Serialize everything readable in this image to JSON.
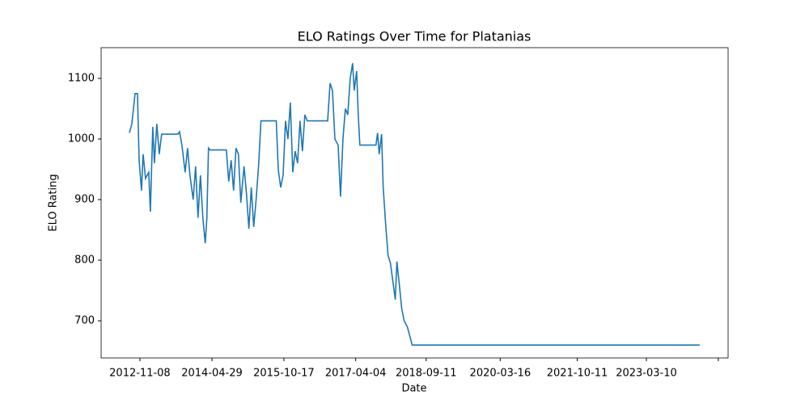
{
  "chart_data": {
    "type": "line",
    "title": "ELO Ratings Over Time for Platanias",
    "x_label": "Date",
    "y_label": "ELO Rating",
    "xlim": [
      "2012-01-24",
      "2024-11-08"
    ],
    "xticks": [
      "2012-11-08",
      "2014-04-29",
      "2015-10-17",
      "2017-04-04",
      "2018-09-11",
      "2020-03-16",
      "2021-10-11",
      "2023-03-10",
      {
        "value": "2024-08-27",
        "label": null
      }
    ],
    "ylim": [
      638.7,
      1150.7
    ],
    "yticks": [
      700,
      800,
      900,
      1000,
      1100
    ],
    "grid": false,
    "x": [
      "2012-08-22",
      "2012-09-09",
      "2012-10-03",
      "2012-10-21",
      "2012-10-27",
      "2012-11-02",
      "2012-11-20",
      "2012-12-02",
      "2012-12-20",
      "2013-01-13",
      "2013-01-25",
      "2013-02-12",
      "2013-02-24",
      "2013-03-14",
      "2013-04-01",
      "2013-04-19",
      "2013-08-18",
      "2013-08-30",
      "2013-09-17",
      "2013-10-11",
      "2013-10-29",
      "2013-11-16",
      "2013-12-10",
      "2013-12-28",
      "2014-01-15",
      "2014-02-02",
      "2014-02-20",
      "2014-03-10",
      "2014-03-22",
      "2014-04-03",
      "2014-04-15",
      "2014-08-14",
      "2014-09-01",
      "2014-09-19",
      "2014-10-07",
      "2014-10-25",
      "2014-11-12",
      "2014-11-30",
      "2014-12-24",
      "2015-01-11",
      "2015-01-29",
      "2015-02-16",
      "2015-03-06",
      "2015-03-24",
      "2015-04-11",
      "2015-04-29",
      "2015-08-21",
      "2015-09-05",
      "2015-09-23",
      "2015-10-11",
      "2015-10-29",
      "2015-11-16",
      "2015-12-04",
      "2015-12-22",
      "2016-01-09",
      "2016-01-27",
      "2016-02-14",
      "2016-03-03",
      "2016-03-21",
      "2016-04-08",
      "2016-09-07",
      "2016-09-25",
      "2016-10-13",
      "2016-10-31",
      "2016-11-24",
      "2016-12-12",
      "2016-12-30",
      "2017-01-17",
      "2017-02-04",
      "2017-02-22",
      "2017-03-12",
      "2017-03-24",
      "2017-04-11",
      "2017-04-23",
      "2017-05-05",
      "2017-09-02",
      "2017-09-14",
      "2017-09-26",
      "2017-10-14",
      "2017-10-26",
      "2017-11-13",
      "2017-12-01",
      "2017-12-19",
      "2018-01-06",
      "2018-01-24",
      "2018-02-05",
      "2018-02-23",
      "2018-03-13",
      "2018-03-31",
      "2018-04-24",
      "2018-05-12",
      "2018-05-30",
      "2024-04-10"
    ],
    "series": [
      {
        "name": "Platanias",
        "color": "#1f77b4",
        "values": [
          1010,
          1025,
          1075,
          1075,
          1020,
          965,
          915,
          975,
          935,
          945,
          880,
          1020,
          960,
          1025,
          975,
          1008,
          1008,
          1012,
          990,
          945,
          985,
          940,
          900,
          955,
          870,
          940,
          870,
          828,
          870,
          985,
          982,
          982,
          930,
          965,
          915,
          985,
          975,
          895,
          955,
          910,
          852,
          920,
          855,
          900,
          955,
          1030,
          1030,
          950,
          920,
          940,
          1030,
          1000,
          1060,
          945,
          980,
          960,
          1030,
          980,
          1040,
          1030,
          1030,
          1092,
          1080,
          1000,
          990,
          905,
          1000,
          1050,
          1040,
          1100,
          1125,
          1080,
          1112,
          1040,
          990,
          990,
          1010,
          975,
          1008,
          920,
          860,
          808,
          795,
          765,
          735,
          798,
          760,
          720,
          700,
          690,
          675,
          660,
          660
        ]
      }
    ]
  }
}
